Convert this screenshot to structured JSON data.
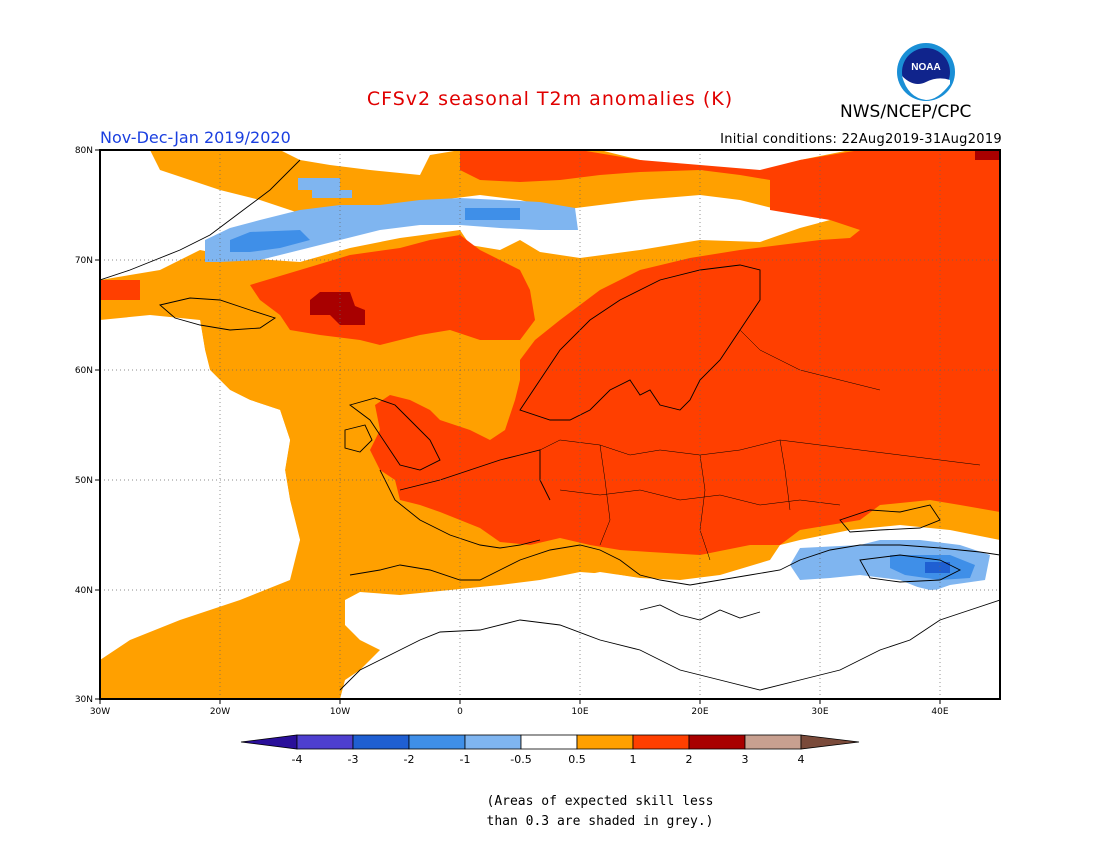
{
  "header": {
    "title": "CFSv2 seasonal T2m anomalies (K)",
    "agency": "NWS/NCEP/CPC",
    "period": "Nov-Dec-Jan 2019/2020",
    "initial_conditions": "Initial conditions: 22Aug2019-31Aug2019",
    "logo_text": "NOAA"
  },
  "map": {
    "lat_labels": [
      "80N",
      "70N",
      "60N",
      "50N",
      "40N",
      "30N"
    ],
    "lon_labels": [
      "30W",
      "20W",
      "10W",
      "0",
      "10E",
      "20E",
      "30E",
      "40E"
    ]
  },
  "legend": {
    "tick_labels": [
      "-4",
      "-3",
      "-2",
      "-1",
      "-0.5",
      "0.5",
      "1",
      "2",
      "3",
      "4"
    ],
    "colors": [
      "#2a0f9a",
      "#4e3fcf",
      "#1f5fd2",
      "#3f8fe8",
      "#7fb5f0",
      "#ffffff",
      "#ffa000",
      "#ff3f00",
      "#a80000",
      "#c8a090",
      "#7a4a3a"
    ]
  },
  "footnote": {
    "line1": "(Areas of expected skill less",
    "line2": "than 0.3 are shaded in grey.)"
  }
}
